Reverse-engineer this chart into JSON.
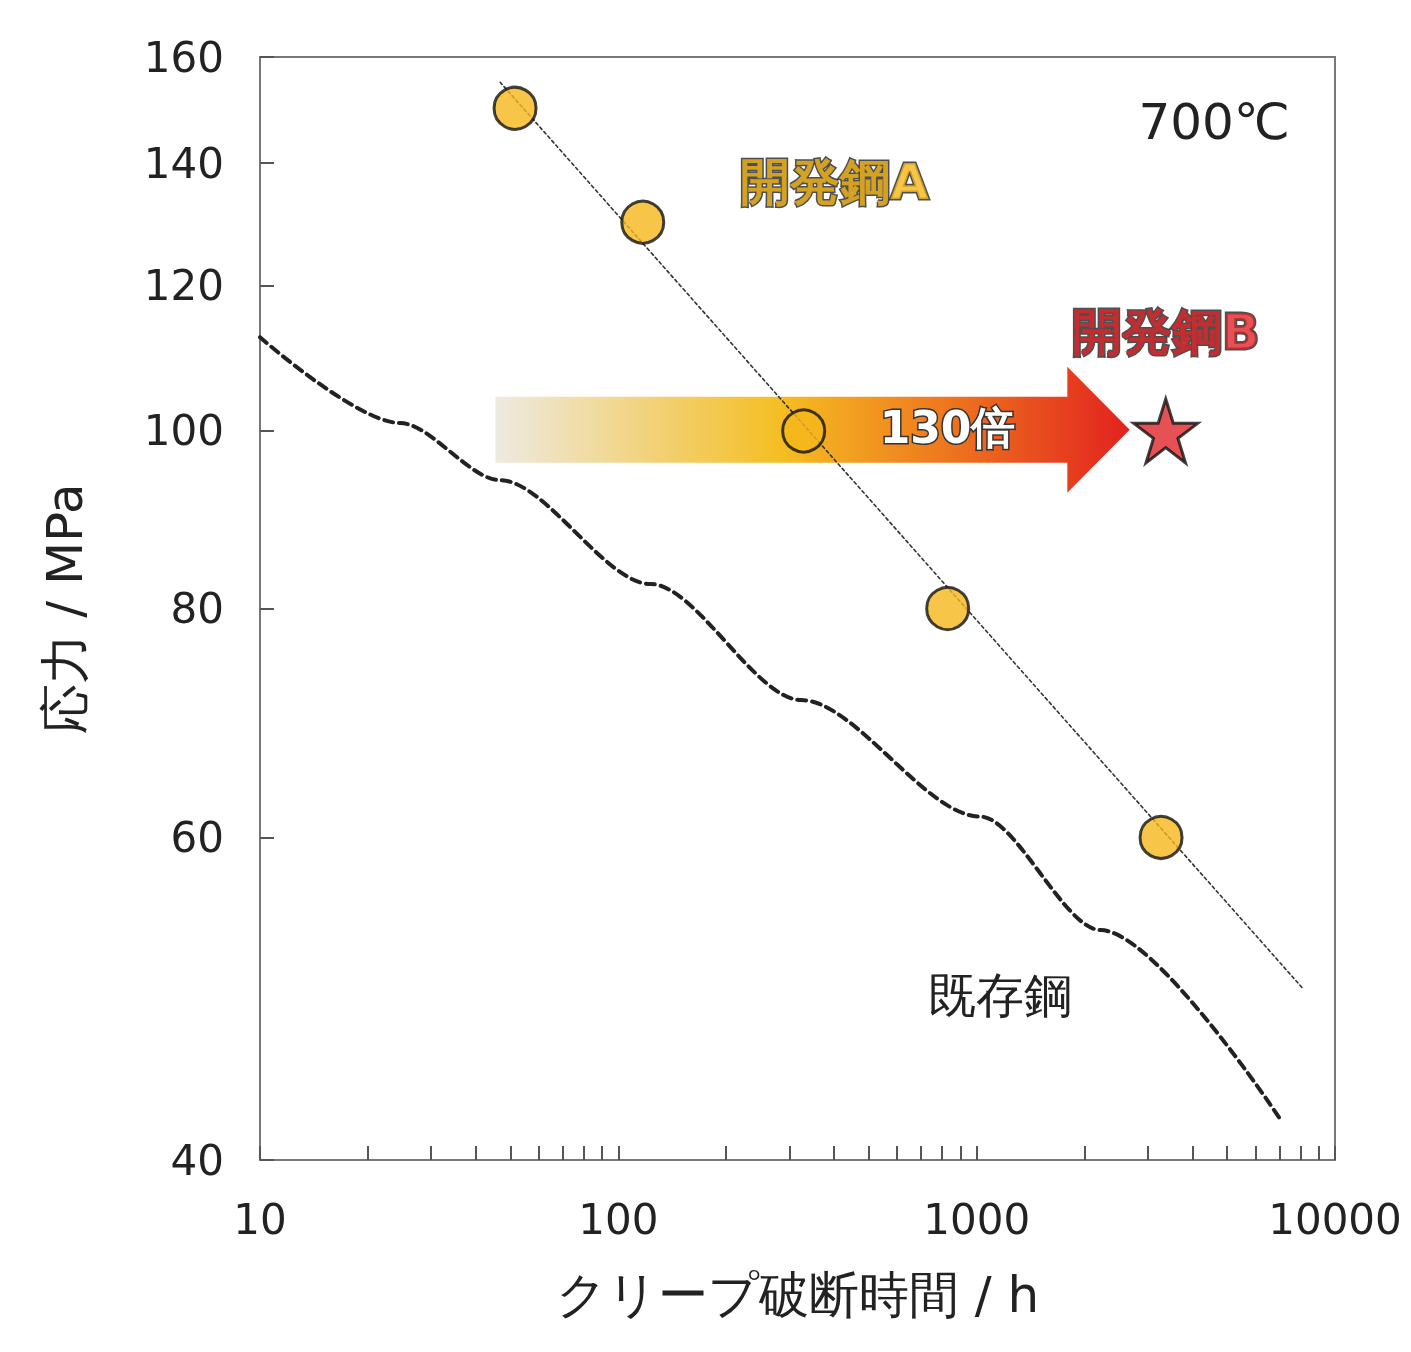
{
  "chart_data": {
    "type": "scatter",
    "xlabel": "クリープ破断時間 / h",
    "ylabel": "応力 / MPa",
    "log": "xy",
    "xlim": [
      10,
      10000
    ],
    "ylim": [
      40,
      160
    ],
    "xticks": [
      10,
      {
        "value": 20,
        "label": null
      },
      {
        "value": 30,
        "label": null
      },
      {
        "value": 40,
        "label": null
      },
      {
        "value": 50,
        "label": null
      },
      {
        "value": 60,
        "label": null
      },
      {
        "value": 70,
        "label": null
      },
      {
        "value": 80,
        "label": null
      },
      {
        "value": 90,
        "label": null
      },
      100,
      {
        "value": 200,
        "label": null
      },
      {
        "value": 300,
        "label": null
      },
      {
        "value": 400,
        "label": null
      },
      {
        "value": 500,
        "label": null
      },
      {
        "value": 600,
        "label": null
      },
      {
        "value": 700,
        "label": null
      },
      {
        "value": 800,
        "label": null
      },
      {
        "value": 900,
        "label": null
      },
      1000,
      {
        "value": 2000,
        "label": null
      },
      {
        "value": 3000,
        "label": null
      },
      {
        "value": 4000,
        "label": null
      },
      {
        "value": 5000,
        "label": null
      },
      {
        "value": 6000,
        "label": null
      },
      {
        "value": 7000,
        "label": null
      },
      {
        "value": 8000,
        "label": null
      },
      {
        "value": 9000,
        "label": null
      },
      10000
    ],
    "yticks": [
      40,
      60,
      80,
      100,
      120,
      140,
      160
    ],
    "annotations": [
      "700℃",
      "130倍"
    ],
    "series": [
      {
        "name": "開発鋼A",
        "marker": "circle",
        "color": "#f5b81c",
        "x": [
          51.5,
          117,
          329,
          830,
          3270
        ],
        "values": [
          150,
          130,
          100,
          80,
          60
        ]
      },
      {
        "name": "開発鋼B",
        "marker": "star",
        "color": "#e0262a",
        "x": [
          3370
        ],
        "values": [
          100
        ]
      },
      {
        "type": "line",
        "color": "#333333",
        "line_style": "dotted",
        "marker": "none",
        "x": [
          46.8,
          8150
        ],
        "values": [
          155,
          49.6
        ]
      },
      {
        "name": "既存鋼",
        "type": "line",
        "color": "#222222",
        "line_style": "dashed",
        "marker": "none",
        "x": [
          10,
          24.6,
          46.8,
          123,
          324,
          1020,
          2220,
          6980
        ],
        "values": [
          112.5,
          101,
          94,
          82.5,
          71.3,
          61.6,
          53.4,
          42.2
        ]
      }
    ]
  }
}
